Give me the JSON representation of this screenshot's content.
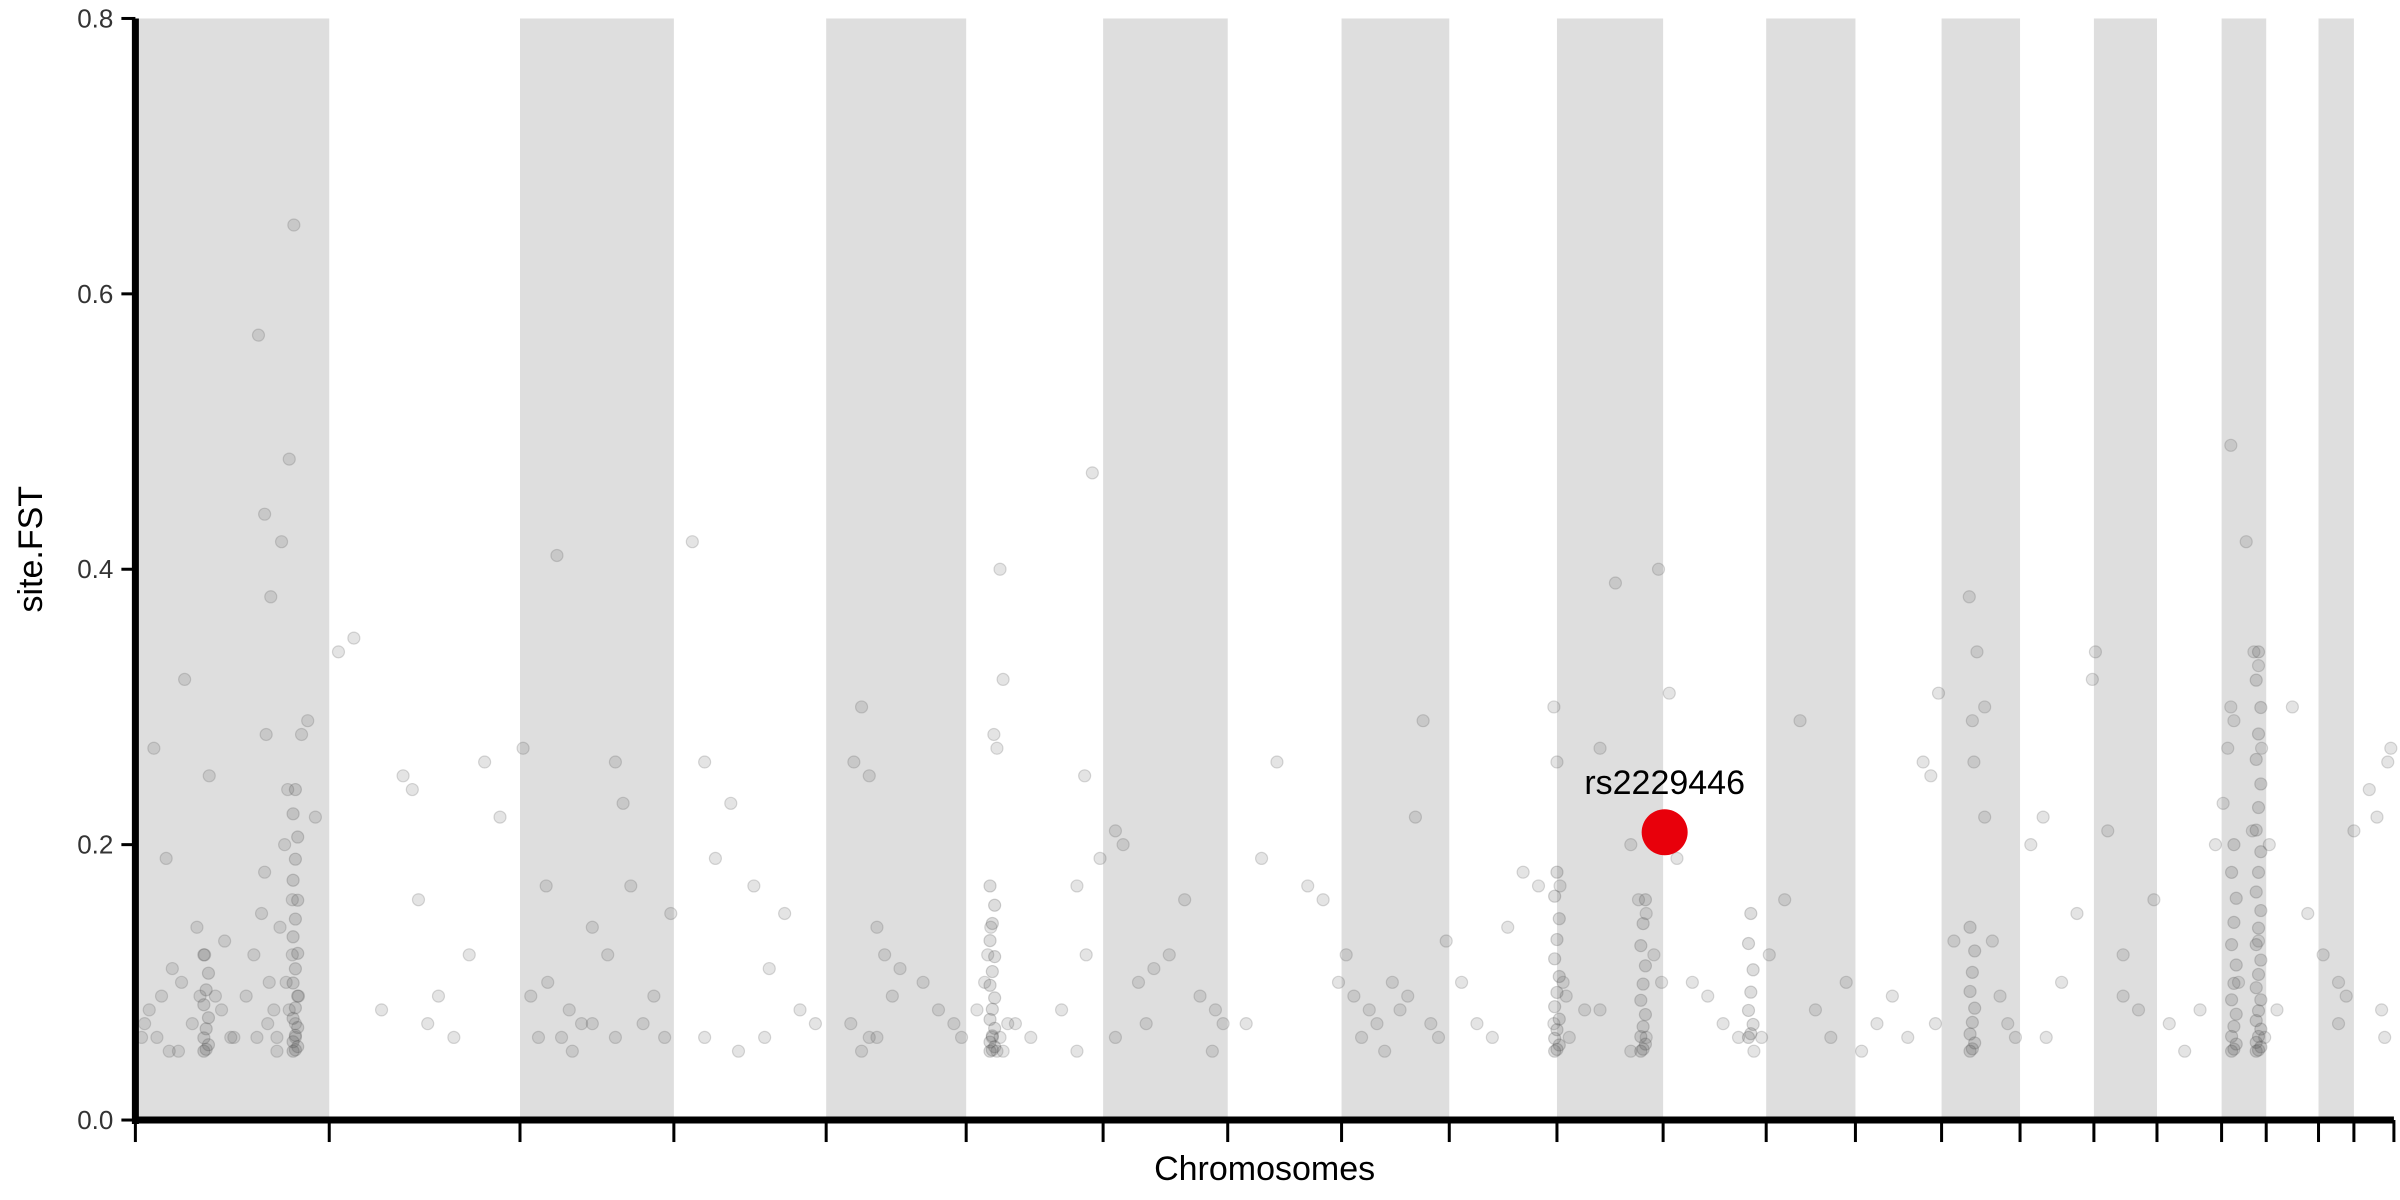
{
  "chart_data": {
    "type": "scatter",
    "title": "",
    "xlabel": "Chromosomes",
    "ylabel": "site.FST",
    "ylim": [
      0,
      0.8
    ],
    "yticks": [
      {
        "value": 0.0,
        "label": "0.0"
      },
      {
        "value": 0.2,
        "label": "0.2"
      },
      {
        "value": 0.4,
        "label": "0.4"
      },
      {
        "value": 0.6,
        "label": "0.6"
      },
      {
        "value": 0.8,
        "label": "0.8"
      }
    ],
    "grid": false,
    "legend": "none",
    "chromosome_boundaries": [
      88,
      214,
      338,
      438,
      537,
      628,
      717,
      798,
      872,
      942,
      1012,
      1081,
      1148,
      1206,
      1262,
      1313,
      1361,
      1402,
      1444,
      1473,
      1507,
      1530,
      1556
    ],
    "shaded_band_color": "#dedede",
    "point_color": "#555555",
    "highlight_color": "#e8000b",
    "highlight": {
      "label": "rs2229446",
      "x": 1082,
      "y": 0.209
    },
    "series": [
      {
        "name": "",
        "x": [
          92,
          97,
          105,
          112,
          118,
          125,
          133,
          140,
          146,
          152,
          100,
          108,
          120,
          128,
          136,
          144,
          160,
          165,
          170,
          172,
          175,
          178,
          180,
          182,
          185,
          187,
          190,
          192,
          194,
          168,
          172,
          176,
          183,
          188,
          191,
          196,
          200,
          205,
          173,
          186,
          190,
          116,
          167,
          174,
          180,
          188,
          192,
          94,
          102,
          110,
          130,
          150,
          220,
          230,
          248,
          262,
          268,
          272,
          278,
          285,
          295,
          305,
          315,
          325,
          345,
          350,
          355,
          362,
          370,
          378,
          385,
          395,
          400,
          405,
          410,
          418,
          425,
          432,
          436,
          340,
          356,
          365,
          372,
          385,
          400,
          450,
          458,
          465,
          475,
          490,
          500,
          510,
          520,
          530,
          458,
          480,
          497,
          555,
          560,
          565,
          570,
          575,
          580,
          585,
          600,
          610,
          620,
          625,
          553,
          560,
          565,
          570,
          635,
          640,
          642,
          644,
          646,
          648,
          650,
          652,
          655,
          645,
          648,
          650,
          652,
          660,
          670,
          690,
          700,
          705,
          710,
          715,
          700,
          706,
          725,
          730,
          740,
          750,
          760,
          770,
          780,
          790,
          795,
          725,
          745,
          788,
          810,
          820,
          830,
          850,
          860,
          870,
          875,
          880,
          885,
          890,
          895,
          900,
          905,
          910,
          915,
          920,
          925,
          930,
          935,
          940,
          950,
          960,
          970,
          980,
          990,
          1000,
          1010,
          1012,
          1014,
          1016,
          1018,
          1020,
          1030,
          1040,
          1050,
          1060,
          1065,
          1070,
          1075,
          1078,
          1085,
          1090,
          1100,
          1110,
          1120,
          1130,
          1140,
          1145,
          1010,
          1040,
          1060,
          1070,
          1080,
          1150,
          1160,
          1170,
          1180,
          1190,
          1200,
          1210,
          1220,
          1230,
          1240,
          1250,
          1255,
          1258,
          1260,
          1270,
          1280,
          1285,
          1290,
          1295,
          1300,
          1305,
          1310,
          1282,
          1283,
          1290,
          1320,
          1330,
          1340,
          1350,
          1360,
          1370,
          1380,
          1390,
          1400,
          1328,
          1362,
          1380,
          1410,
          1420,
          1430,
          1440,
          1445,
          1448,
          1450,
          1452,
          1455,
          1460,
          1465,
          1468,
          1470,
          1472,
          1475,
          1480,
          1450,
          1464,
          1468,
          1490,
          1500,
          1510,
          1520,
          1525,
          1530,
          1540,
          1545,
          1550,
          1552,
          1554,
          1520,
          1548
        ],
        "y": [
          0.06,
          0.08,
          0.09,
          0.11,
          0.1,
          0.07,
          0.12,
          0.09,
          0.13,
          0.06,
          0.27,
          0.19,
          0.32,
          0.14,
          0.25,
          0.08,
          0.09,
          0.12,
          0.15,
          0.18,
          0.1,
          0.08,
          0.06,
          0.14,
          0.2,
          0.24,
          0.16,
          0.07,
          0.09,
          0.57,
          0.44,
          0.38,
          0.42,
          0.48,
          0.65,
          0.28,
          0.29,
          0.22,
          0.28,
          0.1,
          0.12,
          0.05,
          0.06,
          0.07,
          0.05,
          0.08,
          0.06,
          0.07,
          0.06,
          0.05,
          0.09,
          0.06,
          0.34,
          0.35,
          0.08,
          0.25,
          0.24,
          0.16,
          0.07,
          0.09,
          0.06,
          0.12,
          0.26,
          0.22,
          0.09,
          0.06,
          0.17,
          0.41,
          0.08,
          0.07,
          0.14,
          0.12,
          0.26,
          0.23,
          0.17,
          0.07,
          0.09,
          0.06,
          0.15,
          0.27,
          0.1,
          0.06,
          0.05,
          0.07,
          0.06,
          0.42,
          0.26,
          0.19,
          0.23,
          0.17,
          0.11,
          0.15,
          0.08,
          0.07,
          0.06,
          0.05,
          0.06,
          0.26,
          0.3,
          0.25,
          0.14,
          0.12,
          0.09,
          0.11,
          0.1,
          0.08,
          0.07,
          0.06,
          0.07,
          0.05,
          0.06,
          0.06,
          0.08,
          0.1,
          0.12,
          0.14,
          0.28,
          0.27,
          0.4,
          0.32,
          0.07,
          0.06,
          0.05,
          0.06,
          0.05,
          0.07,
          0.06,
          0.08,
          0.05,
          0.25,
          0.47,
          0.19,
          0.17,
          0.12,
          0.21,
          0.2,
          0.1,
          0.11,
          0.12,
          0.16,
          0.09,
          0.08,
          0.07,
          0.06,
          0.07,
          0.05,
          0.07,
          0.19,
          0.26,
          0.17,
          0.16,
          0.1,
          0.12,
          0.09,
          0.06,
          0.08,
          0.07,
          0.05,
          0.1,
          0.08,
          0.09,
          0.22,
          0.29,
          0.07,
          0.06,
          0.13,
          0.1,
          0.07,
          0.06,
          0.14,
          0.18,
          0.17,
          0.3,
          0.26,
          0.17,
          0.1,
          0.09,
          0.06,
          0.08,
          0.27,
          0.39,
          0.2,
          0.16,
          0.15,
          0.12,
          0.4,
          0.31,
          0.19,
          0.1,
          0.09,
          0.07,
          0.06,
          0.05,
          0.06,
          0.07,
          0.08,
          0.05,
          0.06,
          0.1,
          0.12,
          0.16,
          0.29,
          0.08,
          0.06,
          0.1,
          0.05,
          0.07,
          0.09,
          0.06,
          0.26,
          0.25,
          0.07,
          0.31,
          0.13,
          0.38,
          0.34,
          0.3,
          0.13,
          0.09,
          0.07,
          0.06,
          0.29,
          0.26,
          0.22,
          0.2,
          0.06,
          0.1,
          0.15,
          0.32,
          0.21,
          0.12,
          0.08,
          0.16,
          0.22,
          0.34,
          0.09,
          0.07,
          0.05,
          0.08,
          0.2,
          0.23,
          0.27,
          0.49,
          0.29,
          0.1,
          0.42,
          0.34,
          0.33,
          0.27,
          0.06,
          0.2,
          0.08,
          0.3,
          0.21,
          0.13,
          0.3,
          0.15,
          0.12,
          0.07,
          0.09,
          0.21,
          0.24,
          0.22,
          0.06,
          0.26,
          0.27,
          0.1,
          0.08
        ]
      }
    ],
    "series_dense": {
      "clusters": [
        {
          "x": 134,
          "y_min": 0.05,
          "y_max": 0.12,
          "n": 10
        },
        {
          "x": 192,
          "y_min": 0.05,
          "y_max": 0.24,
          "n": 20
        },
        {
          "x": 645,
          "y_min": 0.05,
          "y_max": 0.17,
          "n": 16
        },
        {
          "x": 1012,
          "y_min": 0.05,
          "y_max": 0.18,
          "n": 14
        },
        {
          "x": 1068,
          "y_min": 0.05,
          "y_max": 0.16,
          "n": 12
        },
        {
          "x": 1138,
          "y_min": 0.06,
          "y_max": 0.15,
          "n": 8
        },
        {
          "x": 1282,
          "y_min": 0.05,
          "y_max": 0.14,
          "n": 10
        },
        {
          "x": 1468,
          "y_min": 0.05,
          "y_max": 0.34,
          "n": 26
        },
        {
          "x": 1452,
          "y_min": 0.05,
          "y_max": 0.2,
          "n": 14
        }
      ]
    }
  }
}
